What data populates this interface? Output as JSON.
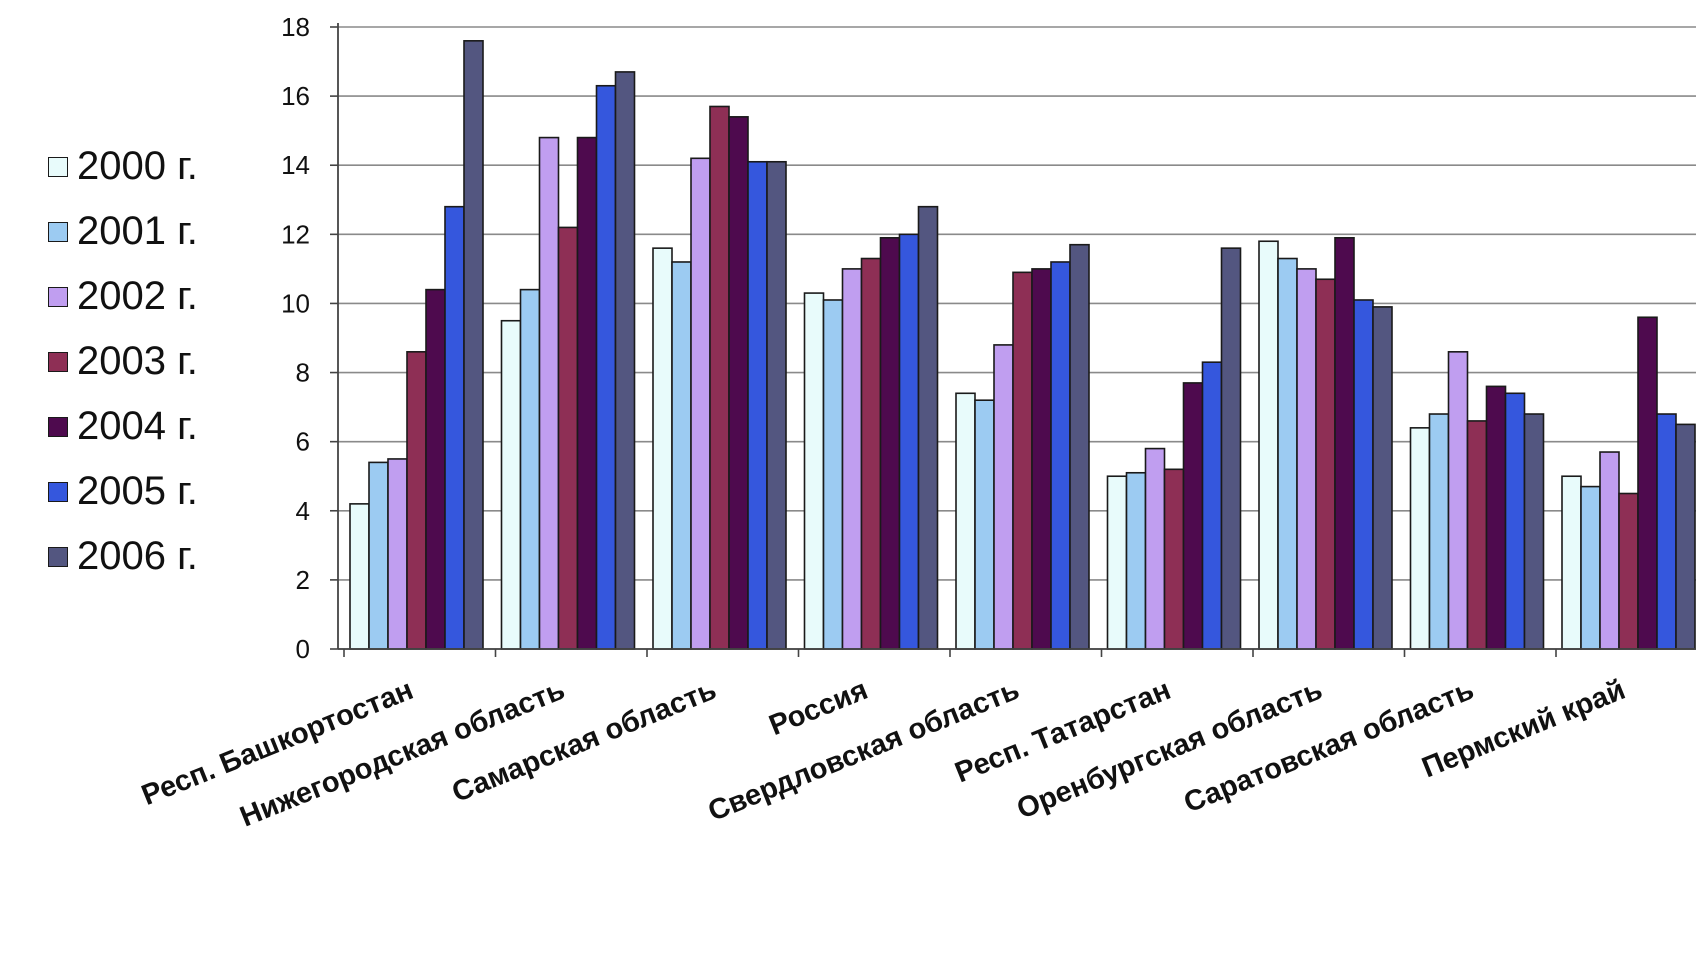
{
  "chart_data": {
    "type": "bar",
    "categories": [
      "Респ. Башкортостан",
      "Нижегородская область",
      "Самарская область",
      "Россия",
      "Свердловская область",
      "Респ. Татарстан",
      "Оренбургская область",
      "Саратовская область",
      "Пермский край"
    ],
    "series": [
      {
        "name": "2000 г.",
        "color": "#e8fbfb",
        "values": [
          4.2,
          9.5,
          11.6,
          10.3,
          7.4,
          5.0,
          11.8,
          6.4,
          5.0
        ]
      },
      {
        "name": "2001 г.",
        "color": "#9ccbf2",
        "values": [
          5.4,
          10.4,
          11.2,
          10.1,
          7.2,
          5.1,
          11.3,
          6.8,
          4.7
        ]
      },
      {
        "name": "2002 г.",
        "color": "#c09ef0",
        "values": [
          5.5,
          14.8,
          14.2,
          11.0,
          8.8,
          5.8,
          11.0,
          8.6,
          5.7
        ]
      },
      {
        "name": "2003 г.",
        "color": "#8e2f55",
        "values": [
          8.6,
          12.2,
          15.7,
          11.3,
          10.9,
          5.2,
          10.7,
          6.6,
          4.5
        ]
      },
      {
        "name": "2004 г.",
        "color": "#4e0a4e",
        "values": [
          10.4,
          14.8,
          15.4,
          11.9,
          11.0,
          7.7,
          11.9,
          7.6,
          9.6
        ]
      },
      {
        "name": "2005 г.",
        "color": "#3557dd",
        "values": [
          12.8,
          16.3,
          14.1,
          12.0,
          11.2,
          8.3,
          10.1,
          7.4,
          6.8
        ]
      },
      {
        "name": "2006 г.",
        "color": "#535680",
        "values": [
          17.6,
          16.7,
          14.1,
          12.8,
          11.7,
          11.6,
          9.9,
          6.8,
          6.5
        ]
      }
    ],
    "yticks": [
      "0",
      "2",
      "4",
      "6",
      "8",
      "10",
      "12",
      "14",
      "16",
      "18"
    ],
    "ylim": [
      0,
      18
    ],
    "grid": true,
    "legend_position": "left",
    "xlabel": "",
    "ylabel": ""
  }
}
